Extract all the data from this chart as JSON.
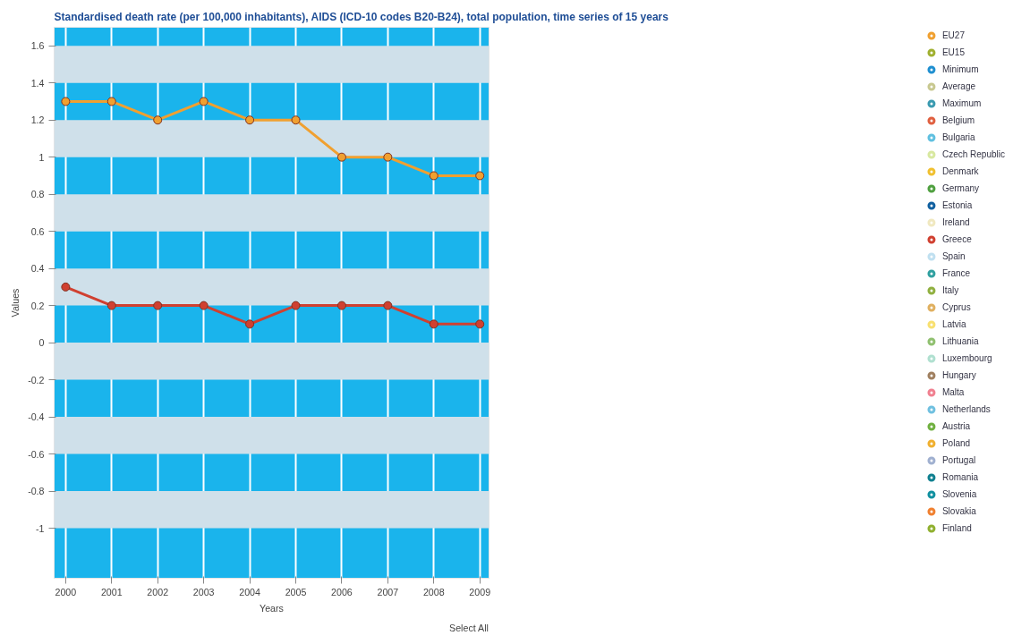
{
  "chart_data": {
    "type": "line",
    "title": "Standardised death rate (per 100,000 inhabitants), AIDS (ICD-10 codes B20-B24), total population, time series of 15 years",
    "xlabel": "Years",
    "ylabel": "Values",
    "x": [
      2000,
      2001,
      2002,
      2003,
      2004,
      2005,
      2006,
      2007,
      2008,
      2009
    ],
    "xlim": [
      1999.75,
      2009.2
    ],
    "xticks": [
      2000,
      2001,
      2002,
      2003,
      2004,
      2005,
      2006,
      2007,
      2008,
      2009
    ],
    "ylim": [
      -1.27,
      1.7
    ],
    "yticks": [
      -1,
      -0.8,
      -0.6,
      -0.4,
      -0.2,
      0,
      0.2,
      0.4,
      0.6,
      0.8,
      1,
      1.2,
      1.4,
      1.6
    ],
    "grid": true,
    "legend": "right",
    "marker": "circle",
    "line_style": "solid",
    "annotations": [
      "Select All"
    ],
    "series": [
      {
        "name": "EU27",
        "color": "#f0a030",
        "values": [
          1.3,
          1.3,
          1.2,
          1.3,
          1.2,
          1.2,
          1.0,
          1.0,
          0.9,
          0.9
        ]
      },
      {
        "name": "EU15",
        "color": "#a0b030",
        "values": [
          null,
          null,
          null,
          null,
          null,
          null,
          null,
          null,
          null,
          null
        ]
      },
      {
        "name": "Minimum",
        "color": "#1f8fd0",
        "values": [
          null,
          null,
          null,
          null,
          null,
          null,
          null,
          null,
          null,
          null
        ]
      },
      {
        "name": "Average",
        "color": "#c8c890",
        "values": [
          null,
          null,
          null,
          null,
          null,
          null,
          null,
          null,
          null,
          null
        ]
      },
      {
        "name": "Maximum",
        "color": "#3a9ab0",
        "values": [
          null,
          null,
          null,
          null,
          null,
          null,
          null,
          null,
          null,
          null
        ]
      },
      {
        "name": "Belgium",
        "color": "#e06040",
        "values": [
          null,
          null,
          null,
          null,
          null,
          null,
          null,
          null,
          null,
          null
        ]
      },
      {
        "name": "Bulgaria",
        "color": "#60c0e0",
        "values": [
          null,
          null,
          null,
          null,
          null,
          null,
          null,
          null,
          null,
          null
        ]
      },
      {
        "name": "Czech Republic",
        "color": "#d8e8a0",
        "values": [
          null,
          null,
          null,
          null,
          null,
          null,
          null,
          null,
          null,
          null
        ]
      },
      {
        "name": "Denmark",
        "color": "#f0c030",
        "values": [
          null,
          null,
          null,
          null,
          null,
          null,
          null,
          null,
          null,
          null
        ]
      },
      {
        "name": "Germany",
        "color": "#50a040",
        "values": [
          null,
          null,
          null,
          null,
          null,
          null,
          null,
          null,
          null,
          null
        ]
      },
      {
        "name": "Estonia",
        "color": "#1060a0",
        "values": [
          null,
          null,
          null,
          null,
          null,
          null,
          null,
          null,
          null,
          null
        ]
      },
      {
        "name": "Ireland",
        "color": "#f0e8c0",
        "values": [
          null,
          null,
          null,
          null,
          null,
          null,
          null,
          null,
          null,
          null
        ]
      },
      {
        "name": "Greece",
        "color": "#d04030",
        "values": [
          0.3,
          0.2,
          0.2,
          0.2,
          0.1,
          0.2,
          0.2,
          0.2,
          0.1,
          0.1
        ]
      },
      {
        "name": "Spain",
        "color": "#c0e0f0",
        "values": [
          null,
          null,
          null,
          null,
          null,
          null,
          null,
          null,
          null,
          null
        ]
      },
      {
        "name": "France",
        "color": "#30a0a0",
        "values": [
          null,
          null,
          null,
          null,
          null,
          null,
          null,
          null,
          null,
          null
        ]
      },
      {
        "name": "Italy",
        "color": "#90b040",
        "values": [
          null,
          null,
          null,
          null,
          null,
          null,
          null,
          null,
          null,
          null
        ]
      },
      {
        "name": "Cyprus",
        "color": "#e0b060",
        "values": [
          null,
          null,
          null,
          null,
          null,
          null,
          null,
          null,
          null,
          null
        ]
      },
      {
        "name": "Latvia",
        "color": "#f8e070",
        "values": [
          null,
          null,
          null,
          null,
          null,
          null,
          null,
          null,
          null,
          null
        ]
      },
      {
        "name": "Lithuania",
        "color": "#90c070",
        "values": [
          null,
          null,
          null,
          null,
          null,
          null,
          null,
          null,
          null,
          null
        ]
      },
      {
        "name": "Luxembourg",
        "color": "#b0e0d0",
        "values": [
          null,
          null,
          null,
          null,
          null,
          null,
          null,
          null,
          null,
          null
        ]
      },
      {
        "name": "Hungary",
        "color": "#a08060",
        "values": [
          null,
          null,
          null,
          null,
          null,
          null,
          null,
          null,
          null,
          null
        ]
      },
      {
        "name": "Malta",
        "color": "#f08090",
        "values": [
          null,
          null,
          null,
          null,
          null,
          null,
          null,
          null,
          null,
          null
        ]
      },
      {
        "name": "Netherlands",
        "color": "#70c0e0",
        "values": [
          null,
          null,
          null,
          null,
          null,
          null,
          null,
          null,
          null,
          null
        ]
      },
      {
        "name": "Austria",
        "color": "#70b040",
        "values": [
          null,
          null,
          null,
          null,
          null,
          null,
          null,
          null,
          null,
          null
        ]
      },
      {
        "name": "Poland",
        "color": "#f0b030",
        "values": [
          null,
          null,
          null,
          null,
          null,
          null,
          null,
          null,
          null,
          null
        ]
      },
      {
        "name": "Portugal",
        "color": "#a0b0d0",
        "values": [
          null,
          null,
          null,
          null,
          null,
          null,
          null,
          null,
          null,
          null
        ]
      },
      {
        "name": "Romania",
        "color": "#108090",
        "values": [
          null,
          null,
          null,
          null,
          null,
          null,
          null,
          null,
          null,
          null
        ]
      },
      {
        "name": "Slovenia",
        "color": "#1090a0",
        "values": [
          null,
          null,
          null,
          null,
          null,
          null,
          null,
          null,
          null,
          null
        ]
      },
      {
        "name": "Slovakia",
        "color": "#f08030",
        "values": [
          null,
          null,
          null,
          null,
          null,
          null,
          null,
          null,
          null,
          null
        ]
      },
      {
        "name": "Finland",
        "color": "#90b030",
        "values": [
          null,
          null,
          null,
          null,
          null,
          null,
          null,
          null,
          null,
          null
        ]
      }
    ]
  }
}
